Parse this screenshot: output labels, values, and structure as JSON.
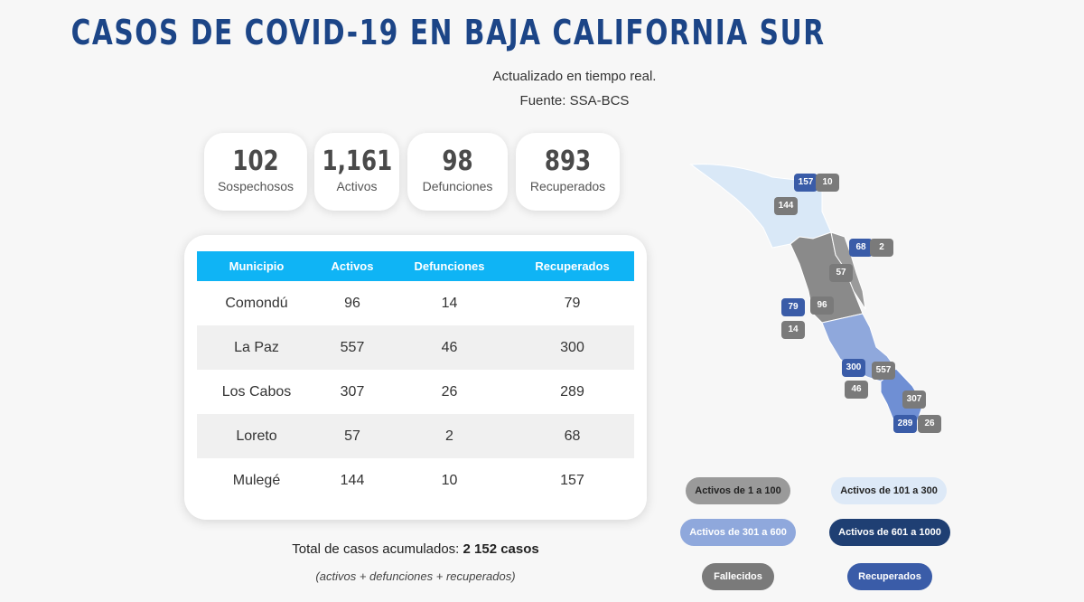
{
  "header": {
    "title": "CASOS DE COVID-19 EN BAJA CALIFORNIA SUR",
    "subtitle": "Actualizado en tiempo real.",
    "source": "Fuente: SSA-BCS"
  },
  "stats": [
    {
      "value": "102",
      "label": "Sospechosos"
    },
    {
      "value": "1,161",
      "label": "Activos"
    },
    {
      "value": "98",
      "label": "Defunciones"
    },
    {
      "value": "893",
      "label": "Recuperados"
    }
  ],
  "table": {
    "headers": [
      "Municipio",
      "Activos",
      "Defunciones",
      "Recuperados"
    ],
    "rows": [
      [
        "Comondú",
        "96",
        "14",
        "79"
      ],
      [
        "La Paz",
        "557",
        "46",
        "300"
      ],
      [
        "Los Cabos",
        "307",
        "26",
        "289"
      ],
      [
        "Loreto",
        "57",
        "2",
        "68"
      ],
      [
        "Mulegé",
        "144",
        "10",
        "157"
      ]
    ]
  },
  "totals": {
    "label": "Total de casos acumulados:",
    "value": "2 152 casos",
    "formula": "(activos + defunciones + recuperados)"
  },
  "map": {
    "badges": [
      {
        "value": "157",
        "kind": "recuperados"
      },
      {
        "value": "10",
        "kind": "fallecidos"
      },
      {
        "value": "144",
        "kind": "activos"
      },
      {
        "value": "68",
        "kind": "recuperados"
      },
      {
        "value": "2",
        "kind": "fallecidos"
      },
      {
        "value": "57",
        "kind": "activos"
      },
      {
        "value": "79",
        "kind": "recuperados"
      },
      {
        "value": "96",
        "kind": "activos"
      },
      {
        "value": "14",
        "kind": "fallecidos"
      },
      {
        "value": "300",
        "kind": "recuperados"
      },
      {
        "value": "557",
        "kind": "activos"
      },
      {
        "value": "46",
        "kind": "fallecidos"
      },
      {
        "value": "307",
        "kind": "activos"
      },
      {
        "value": "289",
        "kind": "recuperados"
      },
      {
        "value": "26",
        "kind": "fallecidos"
      }
    ],
    "colors": {
      "mulege": "#d9e8f7",
      "comondu_loreto": "#8a8a8a",
      "la_paz": "#8fa8dc",
      "los_cabos": "#6f8fd4",
      "badge_active": "#3a5ca8",
      "badge_deaths": "#7a7a7a"
    }
  },
  "legend": [
    {
      "label": "Activos de 1 a 100",
      "bg": "#9a9a9a",
      "fg": "#222222"
    },
    {
      "label": "Activos de 101 a 300",
      "bg": "#dde9f7",
      "fg": "#222222"
    },
    {
      "label": "Activos de 301 a 600",
      "bg": "#8fa8dc",
      "fg": "#ffffff"
    },
    {
      "label": "Activos de 601 a 1000",
      "bg": "#1f3f73",
      "fg": "#ffffff"
    },
    {
      "label": "Fallecidos",
      "bg": "#7a7a7a",
      "fg": "#ffffff"
    },
    {
      "label": "Recuperados",
      "bg": "#3a5ca8",
      "fg": "#ffffff"
    }
  ]
}
